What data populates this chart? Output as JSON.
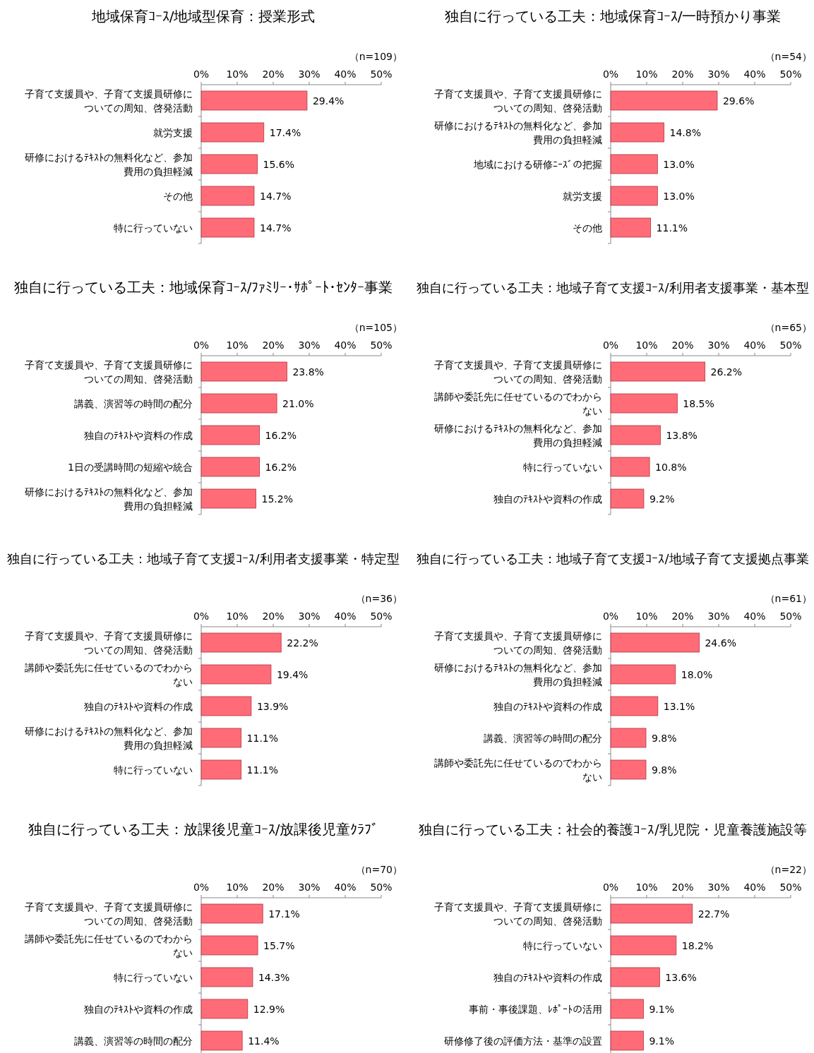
{
  "chart_data": [
    {
      "type": "bar",
      "orientation": "horizontal",
      "title": "地域保育ｺｰｽ/地域型保育：授業形式",
      "annotations": [
        "（n=109）"
      ],
      "color": "#ff6c78",
      "xlim": [
        0,
        50
      ],
      "xticks": [
        {
          "value": 0,
          "label": "0%"
        },
        {
          "value": 10,
          "label": "10%"
        },
        {
          "value": 20,
          "label": "20%"
        },
        {
          "value": 30,
          "label": "30%"
        },
        {
          "value": 40,
          "label": "40%"
        },
        {
          "value": 50,
          "label": "50%"
        }
      ],
      "categories": [
        "子育て支援員や、子育て支援員研修についての周知、啓発活動",
        "就労支援",
        "研修におけるﾃｷｽﾄの無料化など、参加費用の負担軽減",
        "その他",
        "特に行っていない"
      ],
      "values": [
        29.4,
        17.4,
        15.6,
        14.7,
        14.7
      ],
      "value_labels": [
        "29.4%",
        "17.4%",
        "15.6%",
        "14.7%",
        "14.7%"
      ]
    },
    {
      "type": "bar",
      "orientation": "horizontal",
      "title": "独自に行っている工夫：地域保育ｺｰｽ/一時預かり事業",
      "annotations": [
        "（n=54）"
      ],
      "color": "#ff6c78",
      "xlim": [
        0,
        50
      ],
      "xticks": [
        {
          "value": 0,
          "label": "0%"
        },
        {
          "value": 10,
          "label": "10%"
        },
        {
          "value": 20,
          "label": "20%"
        },
        {
          "value": 30,
          "label": "30%"
        },
        {
          "value": 40,
          "label": "40%"
        },
        {
          "value": 50,
          "label": "50%"
        }
      ],
      "categories": [
        "子育て支援員や、子育て支援員研修についての周知、啓発活動",
        "研修におけるﾃｷｽﾄの無料化など、参加費用の負担軽減",
        "地域における研修ﾆｰｽﾞの把握",
        "就労支援",
        "その他"
      ],
      "values": [
        29.6,
        14.8,
        13.0,
        13.0,
        11.1
      ],
      "value_labels": [
        "29.6%",
        "14.8%",
        "13.0%",
        "13.0%",
        "11.1%"
      ]
    },
    {
      "type": "bar",
      "orientation": "horizontal",
      "title": "独自に行っている工夫：地域保育ｺｰｽ/ﾌｧﾐﾘｰ･ｻﾎﾟｰﾄ･ｾﾝﾀｰ事業",
      "annotations": [
        "（n=105）"
      ],
      "color": "#ff6c78",
      "xlim": [
        0,
        50
      ],
      "xticks": [
        {
          "value": 0,
          "label": "0%"
        },
        {
          "value": 10,
          "label": "10%"
        },
        {
          "value": 20,
          "label": "20%"
        },
        {
          "value": 30,
          "label": "30%"
        },
        {
          "value": 40,
          "label": "40%"
        },
        {
          "value": 50,
          "label": "50%"
        }
      ],
      "categories": [
        "子育て支援員や、子育て支援員研修についての周知、啓発活動",
        "講義、演習等の時間の配分",
        "独自のﾃｷｽﾄや資料の作成",
        "1日の受講時間の短縮や統合",
        "研修におけるﾃｷｽﾄの無料化など、参加費用の負担軽減"
      ],
      "values": [
        23.8,
        21.0,
        16.2,
        16.2,
        15.2
      ],
      "value_labels": [
        "23.8%",
        "21.0%",
        "16.2%",
        "16.2%",
        "15.2%"
      ]
    },
    {
      "type": "bar",
      "orientation": "horizontal",
      "title": "独自に行っている工夫：地域子育て支援ｺｰｽ/利用者支援事業・基本型",
      "annotations": [
        "（n=65）"
      ],
      "color": "#ff6c78",
      "xlim": [
        0,
        50
      ],
      "xticks": [
        {
          "value": 0,
          "label": "0%"
        },
        {
          "value": 10,
          "label": "10%"
        },
        {
          "value": 20,
          "label": "20%"
        },
        {
          "value": 30,
          "label": "30%"
        },
        {
          "value": 40,
          "label": "40%"
        },
        {
          "value": 50,
          "label": "50%"
        }
      ],
      "categories": [
        "子育て支援員や、子育て支援員研修についての周知、啓発活動",
        "講師や委託先に任せているのでわからない",
        "研修におけるﾃｷｽﾄの無料化など、参加費用の負担軽減",
        "特に行っていない",
        "独自のﾃｷｽﾄや資料の作成"
      ],
      "values": [
        26.2,
        18.5,
        13.8,
        10.8,
        9.2
      ],
      "value_labels": [
        "26.2%",
        "18.5%",
        "13.8%",
        "10.8%",
        "9.2%"
      ]
    },
    {
      "type": "bar",
      "orientation": "horizontal",
      "title": "独自に行っている工夫：地域子育て支援ｺｰｽ/利用者支援事業・特定型",
      "annotations": [
        "（n=36）"
      ],
      "color": "#ff6c78",
      "xlim": [
        0,
        50
      ],
      "xticks": [
        {
          "value": 0,
          "label": "0%"
        },
        {
          "value": 10,
          "label": "10%"
        },
        {
          "value": 20,
          "label": "20%"
        },
        {
          "value": 30,
          "label": "30%"
        },
        {
          "value": 40,
          "label": "40%"
        },
        {
          "value": 50,
          "label": "50%"
        }
      ],
      "categories": [
        "子育て支援員や、子育て支援員研修についての周知、啓発活動",
        "講師や委託先に任せているのでわからない",
        "独自のﾃｷｽﾄや資料の作成",
        "研修におけるﾃｷｽﾄの無料化など、参加費用の負担軽減",
        "特に行っていない"
      ],
      "values": [
        22.2,
        19.4,
        13.9,
        11.1,
        11.1
      ],
      "value_labels": [
        "22.2%",
        "19.4%",
        "13.9%",
        "11.1%",
        "11.1%"
      ]
    },
    {
      "type": "bar",
      "orientation": "horizontal",
      "title": "独自に行っている工夫：地域子育て支援ｺｰｽ/地域子育て支援拠点事業",
      "annotations": [
        "（n=61）"
      ],
      "color": "#ff6c78",
      "xlim": [
        0,
        50
      ],
      "xticks": [
        {
          "value": 0,
          "label": "0%"
        },
        {
          "value": 10,
          "label": "10%"
        },
        {
          "value": 20,
          "label": "20%"
        },
        {
          "value": 30,
          "label": "30%"
        },
        {
          "value": 40,
          "label": "40%"
        },
        {
          "value": 50,
          "label": "50%"
        }
      ],
      "categories": [
        "子育て支援員や、子育て支援員研修についての周知、啓発活動",
        "研修におけるﾃｷｽﾄの無料化など、参加費用の負担軽減",
        "独自のﾃｷｽﾄや資料の作成",
        "講義、演習等の時間の配分",
        "講師や委託先に任せているのでわからない"
      ],
      "values": [
        24.6,
        18.0,
        13.1,
        9.8,
        9.8
      ],
      "value_labels": [
        "24.6%",
        "18.0%",
        "13.1%",
        "9.8%",
        "9.8%"
      ]
    },
    {
      "type": "bar",
      "orientation": "horizontal",
      "title": "独自に行っている工夫：放課後児童ｺｰｽ/放課後児童ｸﾗﾌﾞ",
      "annotations": [
        "（n=70）"
      ],
      "color": "#ff6c78",
      "xlim": [
        0,
        50
      ],
      "xticks": [
        {
          "value": 0,
          "label": "0%"
        },
        {
          "value": 10,
          "label": "10%"
        },
        {
          "value": 20,
          "label": "20%"
        },
        {
          "value": 30,
          "label": "30%"
        },
        {
          "value": 40,
          "label": "40%"
        },
        {
          "value": 50,
          "label": "50%"
        }
      ],
      "categories": [
        "子育て支援員や、子育て支援員研修についての周知、啓発活動",
        "講師や委託先に任せているのでわからない",
        "特に行っていない",
        "独自のﾃｷｽﾄや資料の作成",
        "講義、演習等の時間の配分"
      ],
      "values": [
        17.1,
        15.7,
        14.3,
        12.9,
        11.4
      ],
      "value_labels": [
        "17.1%",
        "15.7%",
        "14.3%",
        "12.9%",
        "11.4%"
      ]
    },
    {
      "type": "bar",
      "orientation": "horizontal",
      "title": "独自に行っている工夫：社会的養護ｺｰｽ/乳児院・児童養護施設等",
      "annotations": [
        "（n=22）"
      ],
      "color": "#ff6c78",
      "xlim": [
        0,
        50
      ],
      "xticks": [
        {
          "value": 0,
          "label": "0%"
        },
        {
          "value": 10,
          "label": "10%"
        },
        {
          "value": 20,
          "label": "20%"
        },
        {
          "value": 30,
          "label": "30%"
        },
        {
          "value": 40,
          "label": "40%"
        },
        {
          "value": 50,
          "label": "50%"
        }
      ],
      "categories": [
        "子育て支援員や、子育て支援員研修についての周知、啓発活動",
        "特に行っていない",
        "独自のﾃｷｽﾄや資料の作成",
        "事前・事後課題、ﾚﾎﾟｰﾄの活用",
        "研修修了後の評価方法・基準の設置"
      ],
      "values": [
        22.7,
        18.2,
        13.6,
        9.1,
        9.1
      ],
      "value_labels": [
        "22.7%",
        "18.2%",
        "13.6%",
        "9.1%",
        "9.1%"
      ]
    }
  ]
}
